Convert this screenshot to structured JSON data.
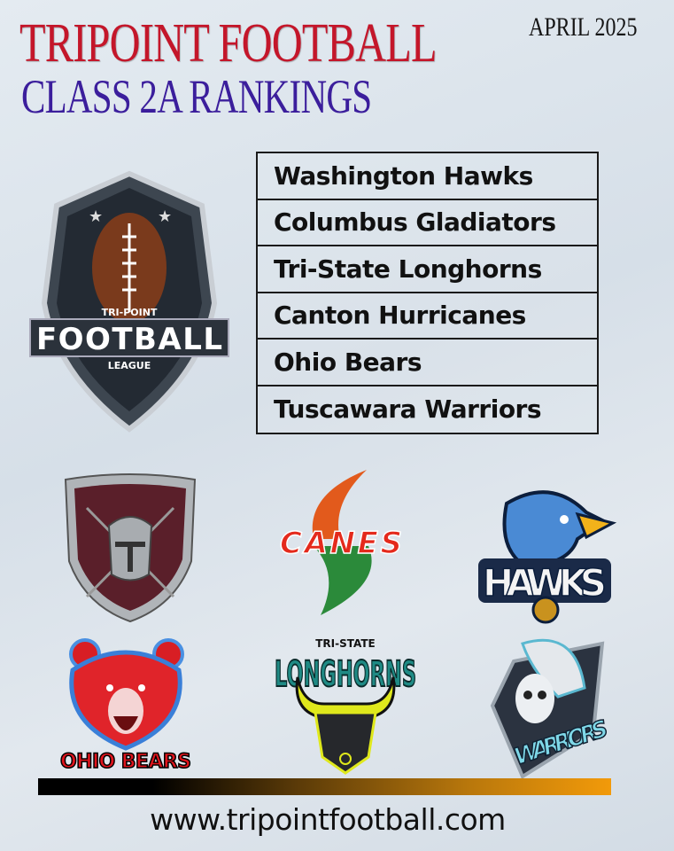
{
  "header": {
    "title": "TRIPOINT FOOTBALL",
    "subtitle": "CLASS 2A RANKINGS",
    "date": "APRIL 2025"
  },
  "league_logo": {
    "text_top": "TRI-POINT",
    "text_main": "FOOTBALL",
    "text_bottom": "LEAGUE"
  },
  "rankings": [
    "Washington Hawks",
    "Columbus Gladiators",
    "Tri-State Longhorns",
    "Canton Hurricanes",
    "Ohio Bears",
    "Tuscawara Warriors"
  ],
  "team_logos": {
    "gladiators": {
      "icon": "gladiator-helmet-shield"
    },
    "canes": {
      "text": "CANES"
    },
    "hawks": {
      "text": "HAWKS"
    },
    "bears": {
      "text": "OHIO BEARS"
    },
    "longhorns": {
      "text_top": "TRI-STATE",
      "text_main": "LONGHORNS"
    },
    "warriors": {
      "text": "WARRIORS"
    }
  },
  "colors": {
    "title": "#c4162a",
    "subtitle": "#3b1e9c",
    "bar_start": "#000000",
    "bar_end": "#f29a0a"
  },
  "footer": {
    "url": "www.tripointfootball.com"
  }
}
